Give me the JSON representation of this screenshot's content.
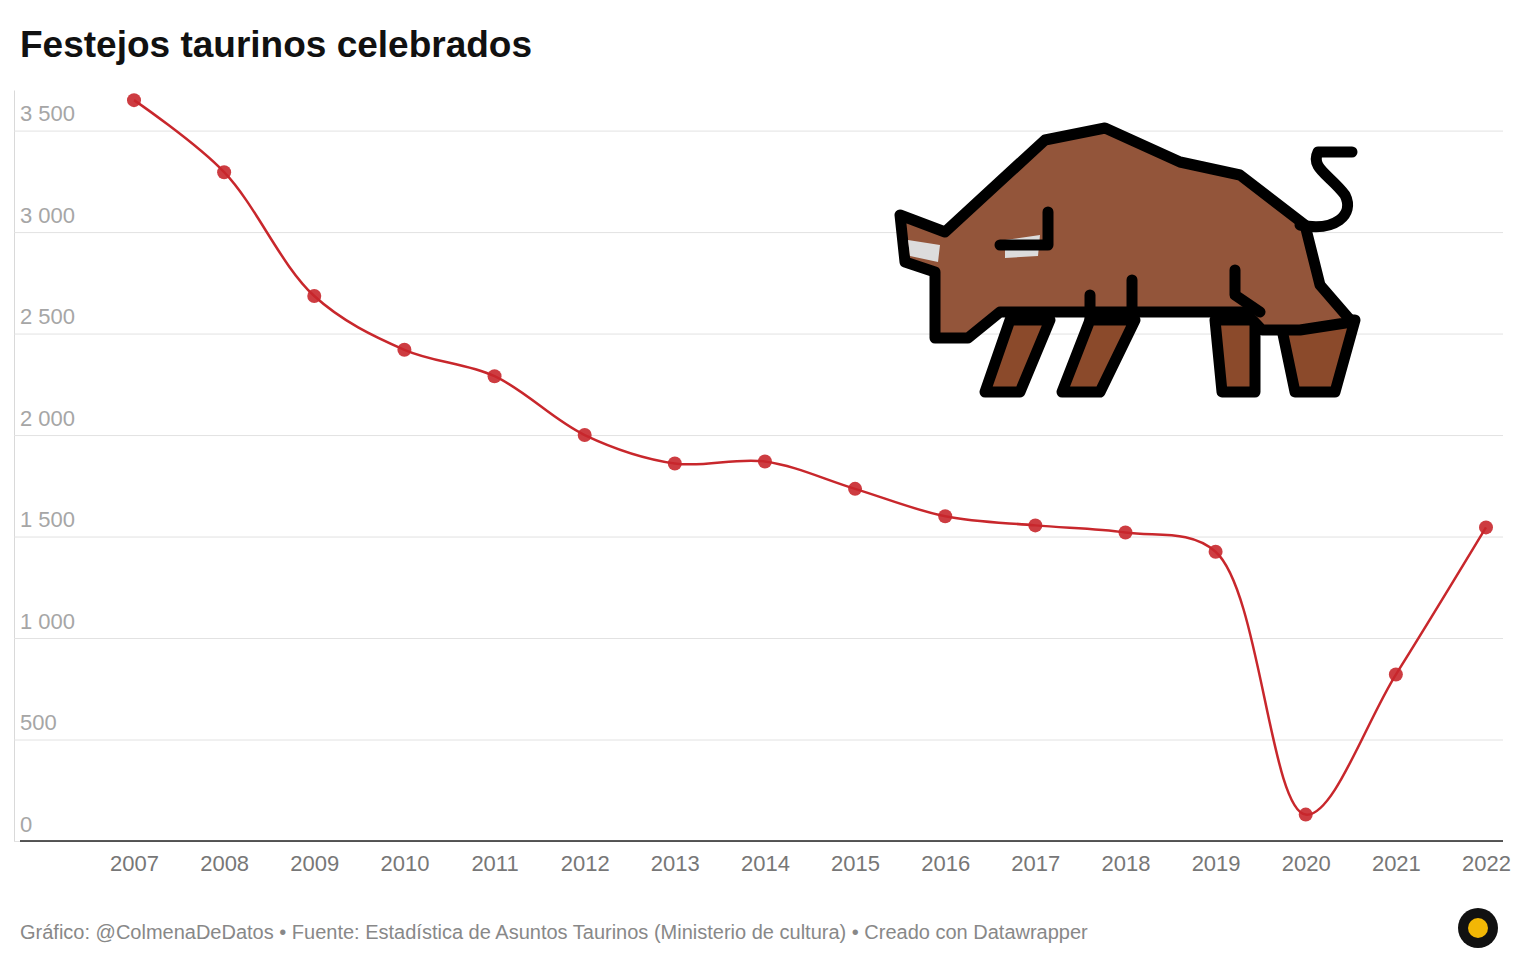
{
  "chart_data": {
    "type": "line",
    "title": "Festejos taurinos celebrados",
    "source": "Gráfico: @ColmenaDeDatos • Fuente: Estadística de Asuntos Taurinos (Ministerio de cultura) • Creado con Datawrapper",
    "x": [
      2007,
      2008,
      2009,
      2010,
      2011,
      2012,
      2013,
      2014,
      2015,
      2016,
      2017,
      2018,
      2019,
      2020,
      2021,
      2022
    ],
    "values": [
      3650,
      3295,
      2685,
      2420,
      2290,
      2000,
      1860,
      1870,
      1735,
      1600,
      1555,
      1520,
      1425,
      130,
      820,
      1545
    ],
    "color": "#c8272c",
    "marker": "circle",
    "line_style": "solid",
    "grid": true,
    "xlim": [
      2007,
      2022
    ],
    "xticks": [
      2007,
      2008,
      2009,
      2010,
      2011,
      2012,
      2013,
      2014,
      2015,
      2016,
      2017,
      2018,
      2019,
      2020,
      2021,
      2022
    ],
    "ylim": [
      0,
      3700
    ],
    "yticks": [
      0,
      500,
      {
        "value": 1000,
        "label": "1 000"
      },
      {
        "value": 1500,
        "label": "1 500"
      },
      {
        "value": 2000,
        "label": "2 000"
      },
      {
        "value": 2500,
        "label": "2 500"
      },
      {
        "value": 3000,
        "label": "3 000"
      },
      {
        "value": 3500,
        "label": "3 500"
      }
    ]
  }
}
